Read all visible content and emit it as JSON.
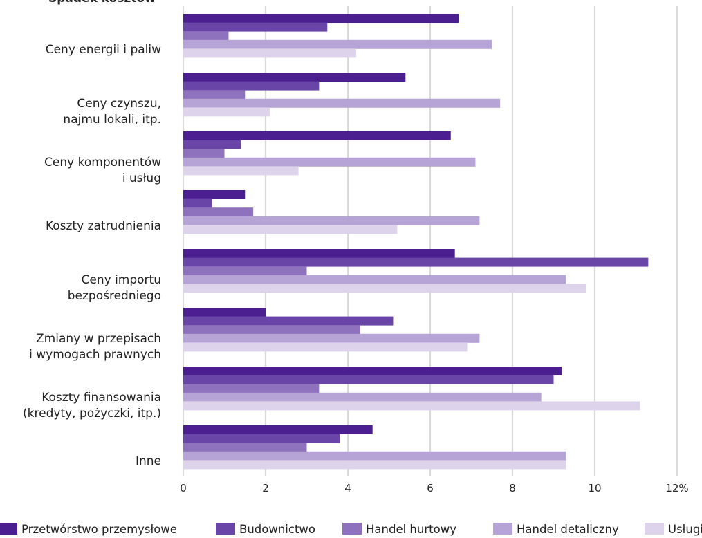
{
  "chart_data": {
    "type": "bar",
    "orientation": "horizontal",
    "title": "Spadek kosztów",
    "categories": [
      [
        "Ceny energii i paliw"
      ],
      [
        "Ceny czynszu,",
        "najmu lokali, itp."
      ],
      [
        "Ceny komponentów",
        "i usług"
      ],
      [
        "Koszty zatrudnienia"
      ],
      [
        "Ceny importu",
        "bezpośredniego"
      ],
      [
        "Zmiany w przepisach",
        "i wymogach prawnych"
      ],
      [
        "Koszty finansowania",
        "(kredyty, pożyczki, itp.)"
      ],
      [
        "Inne"
      ]
    ],
    "series": [
      {
        "name": "Przetwórstwo przemysłowe",
        "color": "#4b1f8f",
        "values": [
          6.7,
          5.4,
          6.5,
          1.5,
          6.6,
          2.0,
          9.2,
          4.6
        ]
      },
      {
        "name": "Budownictwo",
        "color": "#6a45a8",
        "values": [
          3.5,
          3.3,
          1.4,
          0.7,
          11.3,
          5.1,
          9.0,
          3.8
        ]
      },
      {
        "name": "Handel hurtowy",
        "color": "#8f72bd",
        "values": [
          1.1,
          1.5,
          1.0,
          1.7,
          3.0,
          4.3,
          3.3,
          3.0
        ]
      },
      {
        "name": "Handel detaliczny",
        "color": "#b7a4d6",
        "values": [
          7.5,
          7.7,
          7.1,
          7.2,
          9.3,
          7.2,
          8.7,
          9.3
        ]
      },
      {
        "name": "Usługi",
        "color": "#ddd4ec",
        "values": [
          4.2,
          2.1,
          2.8,
          5.2,
          9.8,
          6.9,
          11.1,
          9.3
        ]
      }
    ],
    "xlim": [
      0,
      12
    ],
    "ticks": [
      "0",
      "2",
      "4",
      "6",
      "8",
      "10",
      "12%"
    ],
    "grid": true,
    "legend": "bottom"
  }
}
